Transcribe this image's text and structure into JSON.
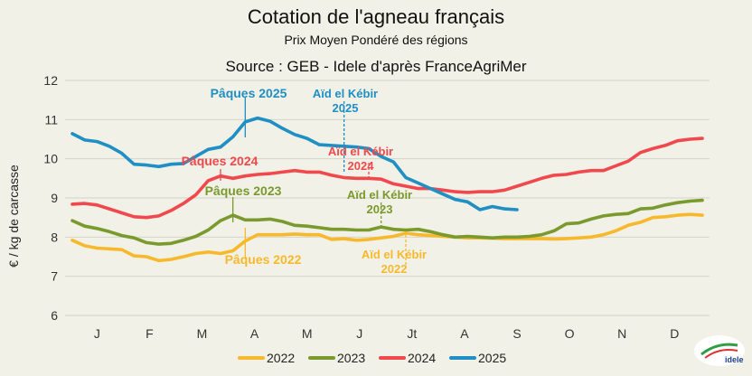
{
  "chart_data": {
    "type": "line",
    "title": "Cotation de l'agneau français",
    "subtitle": "Prix Moyen Pondéré des régions",
    "source": "Source : GEB - Idele d'après FranceAgriMer",
    "ylabel": "€ / kg de carcasse",
    "xlabel": "",
    "ylim": [
      6,
      12
    ],
    "yticks": [
      6,
      7,
      8,
      9,
      10,
      11,
      12
    ],
    "month_labels": [
      "J",
      "F",
      "M",
      "A",
      "M",
      "J",
      "Jt",
      "A",
      "S",
      "O",
      "N",
      "D"
    ],
    "week_range": [
      1,
      52
    ],
    "grid": true,
    "legend_position": "bottom",
    "series": [
      {
        "name": "2022",
        "color": "#f7b92b",
        "x": [
          1,
          2,
          3,
          4,
          5,
          6,
          7,
          8,
          9,
          10,
          11,
          12,
          13,
          14,
          15,
          16,
          17,
          18,
          19,
          20,
          21,
          22,
          23,
          24,
          25,
          26,
          27,
          28,
          29,
          30,
          31,
          32,
          33,
          34,
          35,
          36,
          37,
          38,
          39,
          40,
          41,
          42,
          43,
          44,
          45,
          46,
          47,
          48,
          49,
          50,
          51,
          52
        ],
        "values": [
          7.92,
          7.78,
          7.72,
          7.7,
          7.68,
          7.52,
          7.5,
          7.4,
          7.43,
          7.5,
          7.58,
          7.62,
          7.58,
          7.65,
          7.9,
          8.06,
          8.06,
          8.06,
          8.08,
          8.06,
          8.06,
          7.94,
          7.96,
          7.92,
          7.94,
          7.98,
          8.02,
          8.1,
          8.06,
          8.04,
          8.02,
          8.0,
          7.98,
          7.98,
          7.97,
          7.96,
          7.96,
          7.96,
          7.96,
          7.95,
          7.96,
          7.98,
          8.0,
          8.06,
          8.16,
          8.3,
          8.38,
          8.5,
          8.52,
          8.56,
          8.58,
          8.56
        ]
      },
      {
        "name": "2023",
        "color": "#7a9a2d",
        "x": [
          1,
          2,
          3,
          4,
          5,
          6,
          7,
          8,
          9,
          10,
          11,
          12,
          13,
          14,
          15,
          16,
          17,
          18,
          19,
          20,
          21,
          22,
          23,
          24,
          25,
          26,
          27,
          28,
          29,
          30,
          31,
          32,
          33,
          34,
          35,
          36,
          37,
          38,
          39,
          40,
          41,
          42,
          43,
          44,
          45,
          46,
          47,
          48,
          49,
          50,
          51,
          52
        ],
        "values": [
          8.42,
          8.28,
          8.22,
          8.14,
          8.04,
          7.98,
          7.86,
          7.82,
          7.84,
          7.92,
          8.02,
          8.18,
          8.42,
          8.56,
          8.44,
          8.44,
          8.46,
          8.4,
          8.3,
          8.28,
          8.24,
          8.2,
          8.2,
          8.18,
          8.18,
          8.26,
          8.2,
          8.18,
          8.2,
          8.14,
          8.06,
          8.0,
          8.02,
          8.0,
          7.98,
          8.0,
          8.0,
          8.02,
          8.06,
          8.16,
          8.34,
          8.36,
          8.46,
          8.54,
          8.58,
          8.6,
          8.72,
          8.74,
          8.82,
          8.88,
          8.92,
          8.94
        ]
      },
      {
        "name": "2024",
        "color": "#f0484c",
        "x": [
          1,
          2,
          3,
          4,
          5,
          6,
          7,
          8,
          9,
          10,
          11,
          12,
          13,
          14,
          15,
          16,
          17,
          18,
          19,
          20,
          21,
          22,
          23,
          24,
          25,
          26,
          27,
          28,
          29,
          30,
          31,
          32,
          33,
          34,
          35,
          36,
          37,
          38,
          39,
          40,
          41,
          42,
          43,
          44,
          45,
          46,
          47,
          48,
          49,
          50,
          51,
          52
        ],
        "values": [
          8.84,
          8.86,
          8.82,
          8.72,
          8.62,
          8.52,
          8.5,
          8.54,
          8.68,
          8.86,
          9.08,
          9.44,
          9.56,
          9.5,
          9.56,
          9.6,
          9.62,
          9.66,
          9.7,
          9.66,
          9.66,
          9.58,
          9.52,
          9.5,
          9.5,
          9.48,
          9.36,
          9.3,
          9.24,
          9.24,
          9.2,
          9.16,
          9.14,
          9.16,
          9.16,
          9.2,
          9.3,
          9.4,
          9.5,
          9.58,
          9.6,
          9.66,
          9.7,
          9.7,
          9.82,
          9.94,
          10.16,
          10.26,
          10.34,
          10.46,
          10.5,
          10.52
        ]
      },
      {
        "name": "2025",
        "color": "#1f8fc4",
        "x": [
          1,
          2,
          3,
          4,
          5,
          6,
          7,
          8,
          9,
          10,
          11,
          12,
          13,
          14,
          15,
          16,
          17,
          18,
          19,
          20,
          21,
          22,
          23,
          24,
          25,
          26,
          27,
          28,
          29,
          30,
          31,
          32,
          33,
          34,
          35,
          36,
          37
        ],
        "values": [
          10.64,
          10.48,
          10.44,
          10.32,
          10.14,
          9.86,
          9.84,
          9.8,
          9.86,
          9.88,
          10.06,
          10.24,
          10.3,
          10.56,
          10.94,
          11.04,
          10.96,
          10.78,
          10.62,
          10.52,
          10.36,
          10.34,
          10.32,
          10.3,
          10.26,
          10.06,
          9.92,
          9.52,
          9.38,
          9.24,
          9.1,
          8.96,
          8.9,
          8.7,
          8.78,
          8.72,
          8.7
        ]
      }
    ],
    "annotations": [
      {
        "text": "Pâques 2025",
        "color": "#1f8fc4",
        "week": 15
      },
      {
        "text": "Aïd el Kébir 2025",
        "color": "#1f8fc4",
        "week": 23
      },
      {
        "text": "Pâques 2024",
        "color": "#f0484c",
        "week": 13
      },
      {
        "text": "Aïd el Kébir 2024",
        "color": "#f0484c",
        "week": 25
      },
      {
        "text": "Pâques 2023",
        "color": "#7a9a2d",
        "week": 14
      },
      {
        "text": "Aïd el Kébir 2023",
        "color": "#7a9a2d",
        "week": 26
      },
      {
        "text": "Pâques 2022",
        "color": "#f7b92b",
        "week": 15
      },
      {
        "text": "Aïd el Kébir 2022",
        "color": "#f7b92b",
        "week": 28
      }
    ]
  },
  "logo": {
    "text": "idele"
  }
}
